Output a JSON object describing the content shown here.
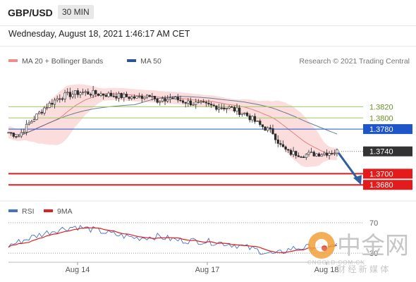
{
  "header": {
    "pair": "GBP/USD",
    "timeframe": "30 MIN",
    "timestamp": "Wednesday, August 18, 2021 1:46:17 AM CET"
  },
  "legend": {
    "items": [
      {
        "label": "MA 20 + Bollinger Bands",
        "color": "#f08c8c"
      },
      {
        "label": "MA 50",
        "color": "#2c5596"
      }
    ],
    "credit": "Research © 2021 Trading Central"
  },
  "colors": {
    "candle": "#2a2a2a",
    "ma20": "#e08080",
    "band_fill": "#fbd7d7",
    "ma50": "#4a5f80",
    "resistance_green": "#9ccc65",
    "pivot_blue": "#1e56c9",
    "support_red": "#e31b1b",
    "arrow": "#2f5f9e",
    "rsi": "#4472c4",
    "rsi_ma": "#e02020"
  },
  "watermark": {
    "brand": "中金网",
    "site": "CNGOLD.COM.CN",
    "slogan": "财 经 新 媒 体"
  },
  "chart_data": [
    {
      "type": "candlestick",
      "title": "GBP/USD",
      "x_tick_labels": [
        "Aug 14",
        "Aug 17",
        "Aug 18"
      ],
      "ylim": [
        1.3655,
        1.3885
      ],
      "approx_close_path": [
        {
          "x_index": 0,
          "y": 1.3774
        },
        {
          "x_index": 4,
          "y": 1.3768
        },
        {
          "x_index": 8,
          "y": 1.379
        },
        {
          "x_index": 14,
          "y": 1.3818
        },
        {
          "x_index": 20,
          "y": 1.3838
        },
        {
          "x_index": 28,
          "y": 1.3846
        },
        {
          "x_index": 38,
          "y": 1.3842
        },
        {
          "x_index": 50,
          "y": 1.3836
        },
        {
          "x_index": 56,
          "y": 1.3844
        },
        {
          "x_index": 58,
          "y": 1.3826
        },
        {
          "x_index": 63,
          "y": 1.3836
        },
        {
          "x_index": 70,
          "y": 1.3828
        },
        {
          "x_index": 78,
          "y": 1.3822
        },
        {
          "x_index": 86,
          "y": 1.3818
        },
        {
          "x_index": 92,
          "y": 1.3808
        },
        {
          "x_index": 98,
          "y": 1.3787
        },
        {
          "x_index": 103,
          "y": 1.3774
        },
        {
          "x_index": 106,
          "y": 1.375
        },
        {
          "x_index": 109,
          "y": 1.3738
        },
        {
          "x_index": 115,
          "y": 1.3734
        },
        {
          "x_index": 123,
          "y": 1.3737
        },
        {
          "x_index": 128,
          "y": 1.374
        }
      ],
      "levels": [
        {
          "value": 1.382,
          "label": "1.3820",
          "style": "resistance"
        },
        {
          "value": 1.38,
          "label": "1.3800",
          "style": "resistance"
        },
        {
          "value": 1.378,
          "label": "1.3780",
          "style": "pivot"
        },
        {
          "value": 1.374,
          "label": "1.3740",
          "style": "last"
        },
        {
          "value": 1.37,
          "label": "1.3700",
          "style": "support"
        },
        {
          "value": 1.368,
          "label": "1.3680",
          "style": "support"
        }
      ],
      "arrow": {
        "from": 1.374,
        "to": 1.368,
        "direction": "down"
      }
    },
    {
      "type": "line",
      "legend": [
        {
          "label": "RSI",
          "color": "#4472c4"
        },
        {
          "label": "9MA",
          "color": "#e02020"
        }
      ],
      "ylim": [
        20,
        80
      ],
      "y_ticks": [
        {
          "value": 70,
          "label": "70"
        },
        {
          "value": 30,
          "label": "30"
        }
      ],
      "approx_rsi_path": [
        {
          "x_index": 0,
          "y": 40
        },
        {
          "x_index": 10,
          "y": 52
        },
        {
          "x_index": 18,
          "y": 60
        },
        {
          "x_index": 26,
          "y": 65
        },
        {
          "x_index": 34,
          "y": 60
        },
        {
          "x_index": 42,
          "y": 54
        },
        {
          "x_index": 50,
          "y": 50
        },
        {
          "x_index": 58,
          "y": 52
        },
        {
          "x_index": 66,
          "y": 47
        },
        {
          "x_index": 74,
          "y": 46
        },
        {
          "x_index": 82,
          "y": 44
        },
        {
          "x_index": 90,
          "y": 40
        },
        {
          "x_index": 98,
          "y": 33
        },
        {
          "x_index": 104,
          "y": 28
        },
        {
          "x_index": 110,
          "y": 36
        },
        {
          "x_index": 118,
          "y": 38
        },
        {
          "x_index": 128,
          "y": 40
        }
      ]
    }
  ]
}
